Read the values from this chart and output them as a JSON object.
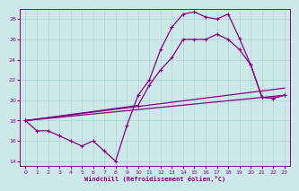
{
  "background_color": "#cce8e8",
  "grid_color": "#aad4d4",
  "line_color": "#880088",
  "xlabel": "Windchill (Refroidissement éolien,°C)",
  "xlim": [
    -0.5,
    23.5
  ],
  "ylim": [
    13.5,
    29.0
  ],
  "yticks": [
    14,
    16,
    18,
    20,
    22,
    24,
    26,
    28
  ],
  "xticks": [
    0,
    1,
    2,
    3,
    4,
    5,
    6,
    7,
    8,
    9,
    10,
    11,
    12,
    13,
    14,
    15,
    16,
    17,
    18,
    19,
    20,
    21,
    22,
    23
  ],
  "line1_x": [
    0,
    1,
    2,
    3,
    4,
    5,
    6,
    7,
    8,
    9,
    10,
    11,
    12,
    13,
    14,
    15,
    16,
    17,
    18,
    19,
    20,
    21,
    22,
    23
  ],
  "line1_y": [
    18.0,
    17.0,
    17.0,
    16.5,
    16.0,
    15.5,
    16.0,
    15.0,
    14.0,
    17.5,
    20.5,
    22.0,
    25.0,
    27.2,
    28.5,
    28.7,
    28.2,
    28.0,
    28.5,
    26.1,
    23.5,
    20.3,
    20.2,
    20.5
  ],
  "line2_x": [
    0,
    10,
    11,
    12,
    13,
    14,
    15,
    16,
    17,
    18,
    19,
    20,
    21,
    22,
    23
  ],
  "line2_y": [
    18.0,
    19.5,
    21.5,
    23.0,
    24.2,
    26.0,
    26.0,
    26.0,
    26.5,
    26.0,
    25.0,
    23.5,
    20.3,
    20.2,
    20.5
  ],
  "line3_x": [
    0,
    23
  ],
  "line3_y": [
    18.0,
    20.5
  ],
  "line4_x": [
    0,
    23
  ],
  "line4_y": [
    18.0,
    21.2
  ]
}
